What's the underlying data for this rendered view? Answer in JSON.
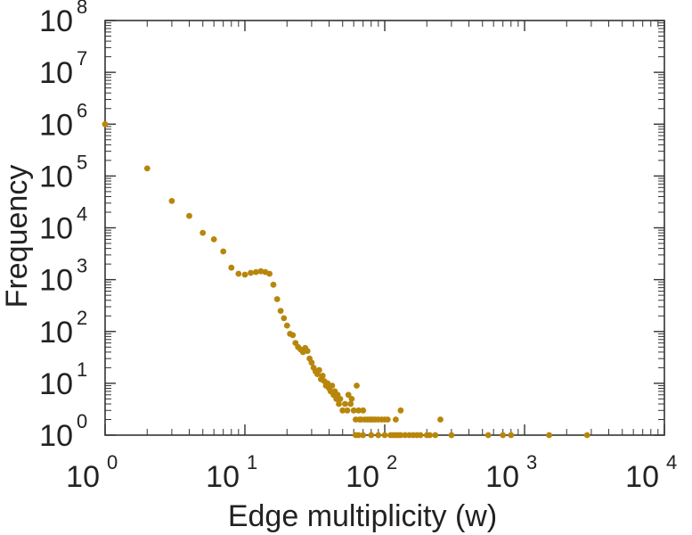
{
  "chart_data": {
    "type": "scatter",
    "xscale": "log",
    "yscale": "log",
    "xlabel": "Edge multiplicity (w)",
    "ylabel": "Frequency",
    "xlim": [
      1,
      10000
    ],
    "ylim": [
      1,
      100000000
    ],
    "grid": false,
    "marker_color": "#B8860B",
    "x_ticks": [
      {
        "base": "10",
        "exp": "0",
        "value": 1
      },
      {
        "base": "10",
        "exp": "1",
        "value": 10
      },
      {
        "base": "10",
        "exp": "2",
        "value": 100
      },
      {
        "base": "10",
        "exp": "3",
        "value": 1000
      },
      {
        "base": "10",
        "exp": "4",
        "value": 10000
      }
    ],
    "y_ticks": [
      {
        "base": "10",
        "exp": "0",
        "value": 1
      },
      {
        "base": "10",
        "exp": "1",
        "value": 10
      },
      {
        "base": "10",
        "exp": "2",
        "value": 100
      },
      {
        "base": "10",
        "exp": "3",
        "value": 1000
      },
      {
        "base": "10",
        "exp": "4",
        "value": 10000
      },
      {
        "base": "10",
        "exp": "5",
        "value": 100000
      },
      {
        "base": "10",
        "exp": "6",
        "value": 1000000
      },
      {
        "base": "10",
        "exp": "7",
        "value": 10000000
      },
      {
        "base": "10",
        "exp": "8",
        "value": 100000000
      }
    ],
    "points": [
      [
        1,
        1000000
      ],
      [
        2,
        140000
      ],
      [
        3,
        33000
      ],
      [
        4,
        17000
      ],
      [
        5,
        8000
      ],
      [
        6,
        6000
      ],
      [
        7,
        3500
      ],
      [
        8,
        1700
      ],
      [
        9,
        1300
      ],
      [
        10,
        1250
      ],
      [
        11,
        1350
      ],
      [
        12,
        1400
      ],
      [
        13,
        1450
      ],
      [
        14,
        1400
      ],
      [
        15,
        1300
      ],
      [
        16,
        800
      ],
      [
        17,
        420
      ],
      [
        18,
        250
      ],
      [
        19,
        180
      ],
      [
        20,
        130
      ],
      [
        21,
        90
      ],
      [
        22,
        85
      ],
      [
        23,
        60
      ],
      [
        24,
        50
      ],
      [
        25,
        45
      ],
      [
        26,
        40
      ],
      [
        27,
        48
      ],
      [
        28,
        42
      ],
      [
        29,
        30
      ],
      [
        30,
        25
      ],
      [
        31,
        20
      ],
      [
        32,
        17
      ],
      [
        33,
        15
      ],
      [
        34,
        18
      ],
      [
        35,
        12
      ],
      [
        36,
        14
      ],
      [
        37,
        11
      ],
      [
        38,
        9
      ],
      [
        39,
        10
      ],
      [
        40,
        8
      ],
      [
        41,
        7
      ],
      [
        42,
        9
      ],
      [
        43,
        6
      ],
      [
        44,
        7
      ],
      [
        45,
        5
      ],
      [
        46,
        6
      ],
      [
        47,
        4
      ],
      [
        48,
        5
      ],
      [
        50,
        3
      ],
      [
        52,
        4
      ],
      [
        54,
        3
      ],
      [
        55,
        6
      ],
      [
        57,
        4
      ],
      [
        58,
        5
      ],
      [
        60,
        3
      ],
      [
        62,
        2
      ],
      [
        63,
        9
      ],
      [
        65,
        3
      ],
      [
        66,
        2
      ],
      [
        68,
        2
      ],
      [
        70,
        3
      ],
      [
        72,
        2
      ],
      [
        75,
        2
      ],
      [
        78,
        2
      ],
      [
        80,
        2
      ],
      [
        83,
        2
      ],
      [
        86,
        2
      ],
      [
        90,
        2
      ],
      [
        95,
        2
      ],
      [
        100,
        2
      ],
      [
        105,
        2
      ],
      [
        120,
        2
      ],
      [
        130,
        3
      ],
      [
        250,
        2
      ],
      [
        62,
        1
      ],
      [
        65,
        1
      ],
      [
        70,
        1
      ],
      [
        80,
        1
      ],
      [
        90,
        1
      ],
      [
        100,
        1
      ],
      [
        110,
        1
      ],
      [
        115,
        1
      ],
      [
        120,
        1
      ],
      [
        125,
        1
      ],
      [
        130,
        1
      ],
      [
        140,
        1
      ],
      [
        150,
        1
      ],
      [
        160,
        1
      ],
      [
        170,
        1
      ],
      [
        180,
        1
      ],
      [
        200,
        1
      ],
      [
        210,
        1
      ],
      [
        230,
        1
      ],
      [
        300,
        1
      ],
      [
        550,
        1
      ],
      [
        700,
        1
      ],
      [
        800,
        1
      ],
      [
        1500,
        1
      ],
      [
        2800,
        1
      ]
    ]
  }
}
